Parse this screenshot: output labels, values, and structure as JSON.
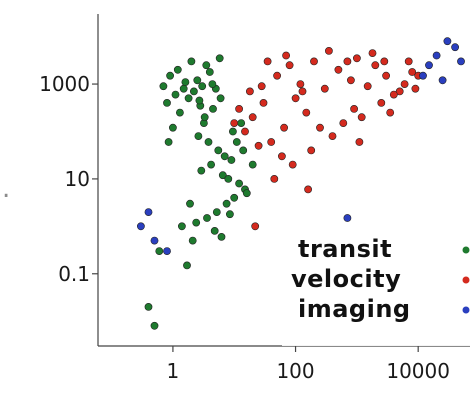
{
  "chart_data": {
    "type": "scatter",
    "x_scale": "log",
    "y_scale": "log",
    "xlim": [
      0.06,
      70000
    ],
    "ylim": [
      0.003,
      30000
    ],
    "x_ticks": [
      {
        "value": 1,
        "label": "1"
      },
      {
        "value": 100,
        "label": "100"
      },
      {
        "value": 10000,
        "label": "10000"
      }
    ],
    "y_ticks": [
      {
        "value": 1000,
        "label": "1000"
      },
      {
        "value": 10,
        "label": "10"
      },
      {
        "value": 0.1,
        "label": "0.1"
      }
    ],
    "grid": false,
    "legend_position": "bottom-right",
    "series": [
      {
        "name": "transit",
        "color": "#1e7a2e",
        "points": [
          [
            1.2,
            2000
          ],
          [
            1.5,
            800
          ],
          [
            0.9,
            1500
          ],
          [
            2.0,
            3000
          ],
          [
            1.8,
            500
          ],
          [
            2.5,
            1200
          ],
          [
            1.1,
            600
          ],
          [
            3.0,
            900
          ],
          [
            0.8,
            400
          ],
          [
            2.2,
            700
          ],
          [
            1.6,
            1100
          ],
          [
            3.5,
            2500
          ],
          [
            4.0,
            1800
          ],
          [
            2.8,
            350
          ],
          [
            1.3,
            250
          ],
          [
            0.7,
            900
          ],
          [
            5.0,
            800
          ],
          [
            6.0,
            500
          ],
          [
            4.5,
            300
          ],
          [
            3.2,
            150
          ],
          [
            2.6,
            80
          ],
          [
            3.8,
            60
          ],
          [
            5.5,
            40
          ],
          [
            7.0,
            30
          ],
          [
            4.2,
            20
          ],
          [
            2.9,
            15
          ],
          [
            6.5,
            12
          ],
          [
            8.0,
            10
          ],
          [
            9.0,
            25
          ],
          [
            12.0,
            8
          ],
          [
            15.0,
            6
          ],
          [
            10.0,
            4
          ],
          [
            7.5,
            3
          ],
          [
            5.2,
            2
          ],
          [
            3.6,
            1.5
          ],
          [
            2.4,
            1.2
          ],
          [
            4.8,
            0.8
          ],
          [
            6.2,
            0.6
          ],
          [
            1.9,
            3
          ],
          [
            2.1,
            0.5
          ],
          [
            1.4,
            1.0
          ],
          [
            0.6,
            0.3
          ],
          [
            0.4,
            0.02
          ],
          [
            0.5,
            0.008
          ],
          [
            1.7,
            0.15
          ],
          [
            20.0,
            20
          ],
          [
            14.0,
            40
          ],
          [
            11.0,
            60
          ],
          [
            9.5,
            100
          ],
          [
            13.0,
            150
          ],
          [
            16.0,
            5
          ],
          [
            8.5,
            1.8
          ],
          [
            3.3,
            200
          ],
          [
            2.7,
            450
          ],
          [
            4.4,
            1000
          ],
          [
            5.8,
            3500
          ],
          [
            1.0,
            120
          ],
          [
            0.85,
            60
          ]
        ]
      },
      {
        "name": "velocity",
        "color": "#d42a1e",
        "points": [
          [
            50,
            1500
          ],
          [
            80,
            2500
          ],
          [
            120,
            1000
          ],
          [
            200,
            3000
          ],
          [
            300,
            800
          ],
          [
            500,
            2000
          ],
          [
            800,
            1200
          ],
          [
            1000,
            3500
          ],
          [
            1500,
            900
          ],
          [
            2000,
            2500
          ],
          [
            3000,
            1500
          ],
          [
            5000,
            700
          ],
          [
            8000,
            1800
          ],
          [
            30,
            400
          ],
          [
            20,
            200
          ],
          [
            15,
            100
          ],
          [
            40,
            60
          ],
          [
            60,
            30
          ],
          [
            25,
            50
          ],
          [
            100,
            500
          ],
          [
            150,
            250
          ],
          [
            250,
            120
          ],
          [
            400,
            80
          ],
          [
            600,
            150
          ],
          [
            900,
            300
          ],
          [
            1200,
            200
          ],
          [
            2500,
            400
          ],
          [
            4000,
            600
          ],
          [
            6000,
            1000
          ],
          [
            10000,
            1500
          ],
          [
            70,
            4000
          ],
          [
            35,
            3000
          ],
          [
            18,
            700
          ],
          [
            12,
            300
          ],
          [
            10,
            150
          ],
          [
            45,
            10
          ],
          [
            90,
            20
          ],
          [
            180,
            40
          ],
          [
            700,
            3000
          ],
          [
            350,
            5000
          ],
          [
            130,
            700
          ],
          [
            65,
            120
          ],
          [
            28,
            900
          ],
          [
            1800,
            4500
          ],
          [
            2800,
            3000
          ],
          [
            7000,
            3000
          ],
          [
            9000,
            800
          ],
          [
            3500,
            250
          ],
          [
            1100,
            60
          ],
          [
            160,
            6
          ],
          [
            22,
            1
          ]
        ]
      },
      {
        "name": "imaging",
        "color": "#2a3fbf",
        "points": [
          [
            20000,
            4000
          ],
          [
            40000,
            6000
          ],
          [
            15000,
            2500
          ],
          [
            30000,
            8000
          ],
          [
            50000,
            3000
          ],
          [
            12000,
            1500
          ],
          [
            25000,
            1200
          ],
          [
            0.4,
            2
          ],
          [
            0.5,
            0.5
          ],
          [
            0.8,
            0.3
          ],
          [
            0.3,
            1.0
          ],
          [
            700,
            1.5
          ]
        ]
      }
    ]
  }
}
